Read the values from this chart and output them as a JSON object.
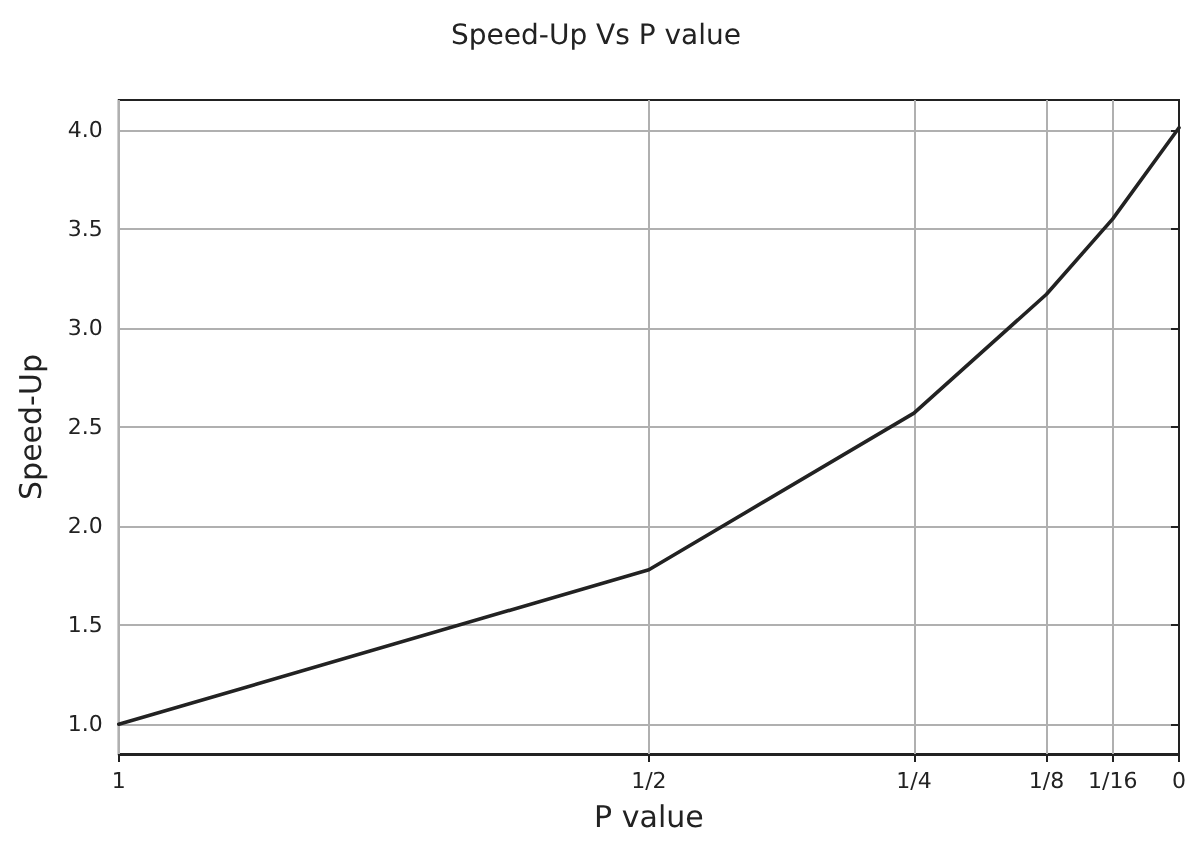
{
  "chart_data": {
    "type": "line",
    "title": "Speed-Up Vs P value",
    "xlabel": "P value",
    "ylabel": "Speed-Up",
    "x": [
      1,
      0.5,
      0.25,
      0.125,
      0.0625,
      0
    ],
    "series": [
      {
        "color": "#222222",
        "values": [
          1.0,
          1.78,
          2.57,
          3.17,
          3.55,
          4.01
        ]
      }
    ],
    "xlim": [
      1,
      0
    ],
    "xticks": [
      {
        "value": 1,
        "label": "1"
      },
      {
        "value": 0.5,
        "label": "1/2"
      },
      {
        "value": 0.25,
        "label": "1/4"
      },
      {
        "value": 0.125,
        "label": "1/8"
      },
      {
        "value": 0.0625,
        "label": "1/16"
      },
      {
        "value": 0,
        "label": "0"
      }
    ],
    "ylim": [
      0.85,
      4.15
    ],
    "yticks": [
      {
        "value": 1,
        "label": "1.0"
      },
      1.5,
      {
        "value": 2,
        "label": "2.0"
      },
      2.5,
      {
        "value": 3,
        "label": "3.0"
      },
      3.5,
      {
        "value": 4,
        "label": "4.0"
      }
    ],
    "grid": true,
    "marker": "none",
    "line_style": "solid"
  }
}
